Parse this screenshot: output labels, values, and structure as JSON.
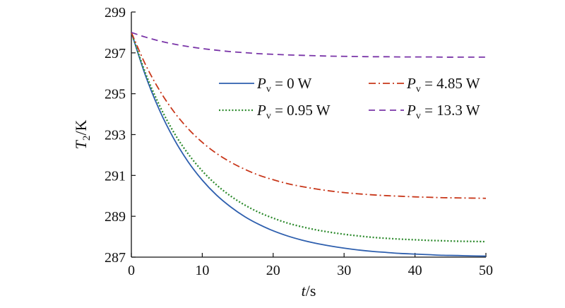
{
  "chart_data": {
    "type": "line",
    "xlabel": {
      "symbol": "t",
      "unit": "/s"
    },
    "ylabel": {
      "symbol": "T",
      "sub": "2",
      "unit": "/K"
    },
    "xlim": [
      0,
      50
    ],
    "ylim": [
      287,
      299
    ],
    "xticks": [
      "0",
      "10",
      "20",
      "30",
      "40",
      "50"
    ],
    "yticks": [
      "287",
      "289",
      "291",
      "293",
      "295",
      "297",
      "299"
    ],
    "grid": false,
    "legend_position": "right",
    "series": [
      {
        "label": {
          "symbol": "P",
          "sub": "v",
          "value": " = 0 W"
        },
        "color": "#2e5fae",
        "style": "solid",
        "x": [
          0,
          2,
          4,
          6,
          8,
          10,
          12,
          14,
          16,
          18,
          20,
          22,
          24,
          26,
          28,
          30,
          32,
          34,
          36,
          38,
          40,
          42,
          44,
          46,
          48,
          50
        ],
        "y": [
          298.0,
          295.88,
          294.17,
          292.79,
          291.67,
          290.77,
          290.04,
          289.46,
          288.98,
          288.6,
          288.29,
          288.04,
          287.84,
          287.68,
          287.55,
          287.44,
          287.35,
          287.28,
          287.23,
          287.18,
          287.15,
          287.12,
          287.09,
          287.08,
          287.06,
          287.05
        ]
      },
      {
        "label": {
          "symbol": "P",
          "sub": "v",
          "value": " = 0.95 W"
        },
        "color": "#2e8b2e",
        "style": "dotted",
        "x": [
          0,
          2,
          4,
          6,
          8,
          10,
          12,
          14,
          16,
          18,
          20,
          22,
          24,
          26,
          28,
          30,
          32,
          34,
          36,
          38,
          40,
          42,
          44,
          46,
          48,
          50
        ],
        "y": [
          298.0,
          296.0,
          294.4,
          293.1,
          292.06,
          291.22,
          290.54,
          289.99,
          289.55,
          289.19,
          288.91,
          288.67,
          288.49,
          288.34,
          288.22,
          288.12,
          288.04,
          287.97,
          287.92,
          287.88,
          287.85,
          287.82,
          287.8,
          287.78,
          287.77,
          287.76
        ]
      },
      {
        "label": {
          "symbol": "P",
          "sub": "v",
          "value": " = 4.85 W"
        },
        "color": "#c8371a",
        "style": "dashdot",
        "x": [
          0,
          2,
          4,
          6,
          8,
          10,
          12,
          14,
          16,
          18,
          20,
          22,
          24,
          26,
          28,
          30,
          32,
          34,
          36,
          38,
          40,
          42,
          44,
          46,
          48,
          50
        ],
        "y": [
          298.0,
          296.42,
          295.15,
          294.12,
          293.29,
          292.62,
          292.08,
          291.65,
          291.3,
          291.01,
          290.79,
          290.6,
          290.46,
          290.34,
          290.24,
          290.16,
          290.1,
          290.05,
          290.01,
          289.98,
          289.95,
          289.93,
          289.91,
          289.9,
          289.89,
          289.88
        ]
      },
      {
        "label": {
          "symbol": "P",
          "sub": "v",
          "value": " = 13.3 W"
        },
        "color": "#7a35a8",
        "style": "dashed",
        "x": [
          0,
          2,
          4,
          6,
          8,
          10,
          12,
          14,
          16,
          18,
          20,
          22,
          24,
          26,
          28,
          30,
          32,
          34,
          36,
          38,
          40,
          42,
          44,
          46,
          48,
          50
        ],
        "y": [
          298.0,
          297.77,
          297.58,
          297.43,
          297.31,
          297.21,
          297.13,
          297.06,
          297.01,
          296.96,
          296.93,
          296.9,
          296.88,
          296.86,
          296.84,
          296.83,
          296.82,
          296.81,
          296.81,
          296.8,
          296.8,
          296.8,
          296.79,
          296.79,
          296.79,
          296.79
        ]
      }
    ]
  }
}
